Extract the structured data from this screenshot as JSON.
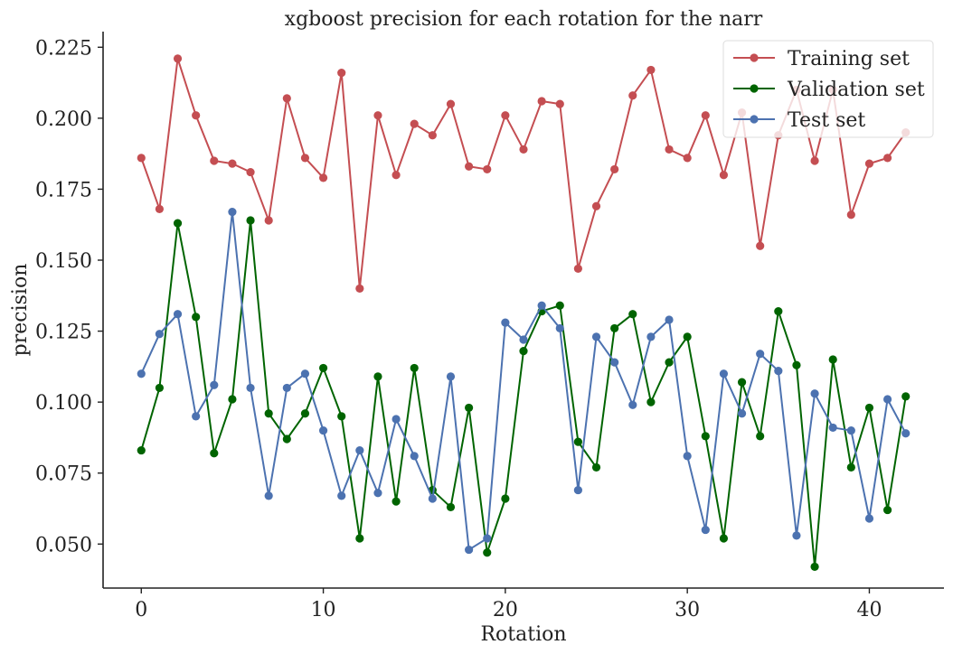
{
  "chart_data": {
    "type": "line",
    "title": "xgboost precision for each rotation for the narr",
    "xlabel": "Rotation",
    "ylabel": "precision",
    "xlim": [
      -2.1,
      44.1
    ],
    "ylim": [
      0.0345,
      0.2305
    ],
    "xticks": [
      0,
      10,
      20,
      30,
      40
    ],
    "yticks": [
      0.05,
      0.075,
      0.1,
      0.125,
      0.15,
      0.175,
      0.2,
      0.225
    ],
    "ytick_labels": [
      "0.050",
      "0.075",
      "0.100",
      "0.125",
      "0.150",
      "0.175",
      "0.200",
      "0.225"
    ],
    "grid": false,
    "legend_position": "top-right",
    "x": [
      0,
      1,
      2,
      3,
      4,
      5,
      6,
      7,
      8,
      9,
      10,
      11,
      12,
      13,
      14,
      15,
      16,
      17,
      18,
      19,
      20,
      21,
      22,
      23,
      24,
      25,
      26,
      27,
      28,
      29,
      30,
      31,
      32,
      33,
      34,
      35,
      36,
      37,
      38,
      39,
      40,
      41,
      42
    ],
    "series": [
      {
        "name": "Training set",
        "color": "#c44e52",
        "values": [
          0.186,
          0.168,
          0.221,
          0.201,
          0.185,
          0.184,
          0.181,
          0.164,
          0.207,
          0.186,
          0.179,
          0.216,
          0.14,
          0.201,
          0.18,
          0.198,
          0.194,
          0.205,
          0.183,
          0.182,
          0.201,
          0.189,
          0.206,
          0.205,
          0.147,
          0.169,
          0.182,
          0.208,
          0.217,
          0.189,
          0.186,
          0.201,
          0.18,
          0.202,
          0.155,
          0.194,
          0.21,
          0.185,
          0.21,
          0.166,
          0.184,
          0.186,
          0.195
        ]
      },
      {
        "name": "Validation set",
        "color": "#006400",
        "values": [
          0.083,
          0.105,
          0.163,
          0.13,
          0.082,
          0.101,
          0.164,
          0.096,
          0.087,
          0.096,
          0.112,
          0.095,
          0.052,
          0.109,
          0.065,
          0.112,
          0.069,
          0.063,
          0.098,
          0.047,
          0.066,
          0.118,
          0.132,
          0.134,
          0.086,
          0.077,
          0.126,
          0.131,
          0.1,
          0.114,
          0.123,
          0.088,
          0.052,
          0.107,
          0.088,
          0.132,
          0.113,
          0.042,
          0.115,
          0.077,
          0.098,
          0.062,
          0.102
        ]
      },
      {
        "name": "Test set",
        "color": "#4c72b0",
        "values": [
          0.11,
          0.124,
          0.131,
          0.095,
          0.106,
          0.167,
          0.105,
          0.067,
          0.105,
          0.11,
          0.09,
          0.067,
          0.083,
          0.068,
          0.094,
          0.081,
          0.066,
          0.109,
          0.048,
          0.052,
          0.128,
          0.122,
          0.134,
          0.126,
          0.069,
          0.123,
          0.114,
          0.099,
          0.123,
          0.129,
          0.081,
          0.055,
          0.11,
          0.096,
          0.117,
          0.111,
          0.053,
          0.103,
          0.091,
          0.09,
          0.059,
          0.101,
          0.089
        ]
      }
    ]
  }
}
